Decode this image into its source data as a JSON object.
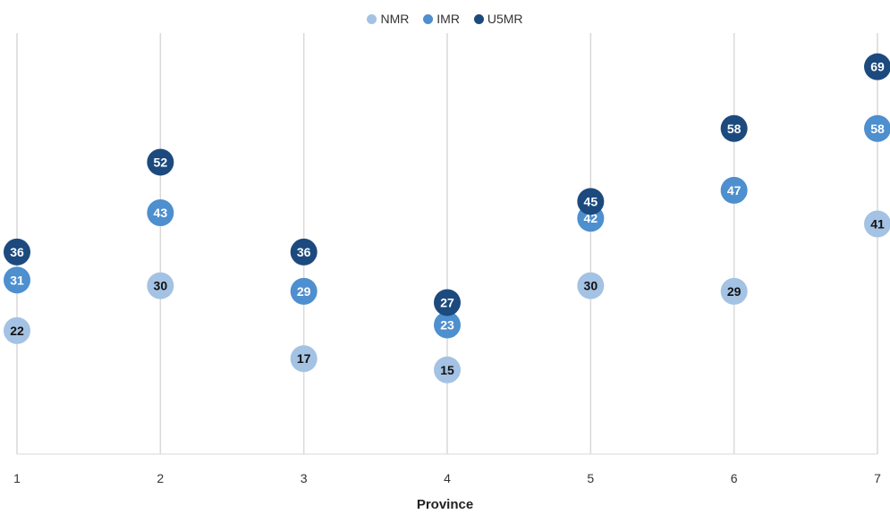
{
  "chart_data": {
    "type": "scatter",
    "xlabel": "Province",
    "ylabel": "",
    "categories": [
      "1",
      "2",
      "3",
      "4",
      "5",
      "6",
      "7"
    ],
    "ylim": [
      0,
      75
    ],
    "grid": "vertical",
    "legend_position": "top",
    "series": [
      {
        "name": "NMR",
        "color": "#a4c2e3",
        "label_color": "#111111",
        "values": [
          22,
          30,
          17,
          15,
          30,
          29,
          41
        ]
      },
      {
        "name": "IMR",
        "color": "#4d8fcf",
        "label_color": "#ffffff",
        "values": [
          31,
          43,
          29,
          23,
          42,
          47,
          58
        ]
      },
      {
        "name": "U5MR",
        "color": "#1c4a7e",
        "label_color": "#ffffff",
        "values": [
          36,
          52,
          36,
          27,
          45,
          58,
          69
        ]
      }
    ]
  }
}
